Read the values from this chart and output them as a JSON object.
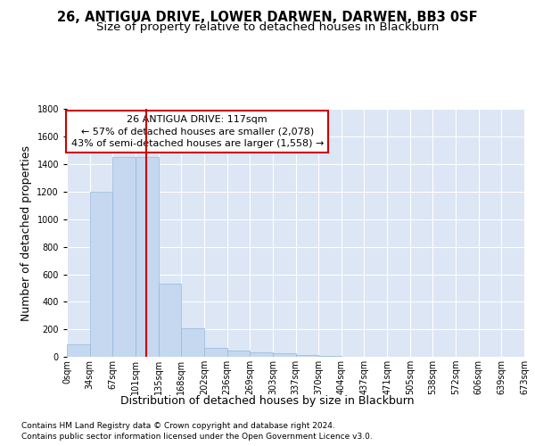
{
  "title1": "26, ANTIGUA DRIVE, LOWER DARWEN, DARWEN, BB3 0SF",
  "title2": "Size of property relative to detached houses in Blackburn",
  "xlabel": "Distribution of detached houses by size in Blackburn",
  "ylabel": "Number of detached properties",
  "footer1": "Contains HM Land Registry data © Crown copyright and database right 2024.",
  "footer2": "Contains public sector information licensed under the Open Government Licence v3.0.",
  "annotation_line1": "26 ANTIGUA DRIVE: 117sqm",
  "annotation_line2": "← 57% of detached houses are smaller (2,078)",
  "annotation_line3": "43% of semi-detached houses are larger (1,558) →",
  "bar_values": [
    90,
    1200,
    1450,
    1450,
    530,
    205,
    65,
    45,
    35,
    28,
    10,
    5,
    3,
    0,
    0,
    0,
    0,
    0,
    0,
    0
  ],
  "bin_labels": [
    "0sqm",
    "34sqm",
    "67sqm",
    "101sqm",
    "135sqm",
    "168sqm",
    "202sqm",
    "236sqm",
    "269sqm",
    "303sqm",
    "337sqm",
    "370sqm",
    "404sqm",
    "437sqm",
    "471sqm",
    "505sqm",
    "538sqm",
    "572sqm",
    "606sqm",
    "639sqm",
    "673sqm"
  ],
  "bar_color": "#c5d8f0",
  "bar_edge_color": "#94b8d8",
  "vline_color": "#cc0000",
  "bg_color": "#dce6f5",
  "grid_color": "#ffffff",
  "ylim": [
    0,
    1800
  ],
  "yticks": [
    0,
    200,
    400,
    600,
    800,
    1000,
    1200,
    1400,
    1600,
    1800
  ],
  "title_fontsize": 10.5,
  "subtitle_fontsize": 9.5,
  "axis_label_fontsize": 9,
  "tick_fontsize": 7,
  "annotation_fontsize": 8,
  "footer_fontsize": 6.5,
  "xlabel_fontsize": 9
}
